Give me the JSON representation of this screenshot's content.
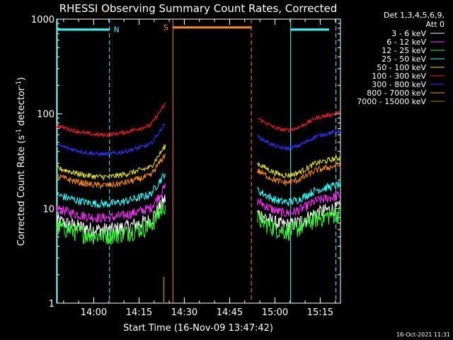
{
  "chart_data": {
    "type": "line",
    "title": "RHESSI Observing Summary Count Rates, Corrected",
    "xlabel": "Start Time (16-Nov-09 13:47:42)",
    "ylabel_parts": [
      "Corrected Count Rate (s",
      "-1",
      " detector",
      "-1",
      ")"
    ],
    "y_scale": "log",
    "ylim": [
      1,
      1000
    ],
    "x_unit": "minutes after 13:47:42",
    "xlim": [
      0,
      94
    ],
    "y_ticks": [
      {
        "value": 1,
        "label": "1"
      },
      {
        "value": 10,
        "label": "10"
      },
      {
        "value": 100,
        "label": "100"
      },
      {
        "value": 1000,
        "label": "1000"
      }
    ],
    "x_ticks": [
      {
        "value": 12.3,
        "label": "14:00"
      },
      {
        "value": 27.3,
        "label": "14:15"
      },
      {
        "value": 42.3,
        "label": "14:30"
      },
      {
        "value": 57.3,
        "label": "14:45"
      },
      {
        "value": 72.3,
        "label": "15:00"
      },
      {
        "value": 87.3,
        "label": "15:15"
      }
    ],
    "legend_header": [
      "Det 1,3,4,5,6,9,",
      "Att 0"
    ],
    "legend_position": "right",
    "series": [
      {
        "name": "3 - 6 keV",
        "color": "#ffffff",
        "pre": 7.5,
        "post": 7.5,
        "noise": 0.18
      },
      {
        "name": "6 - 12 keV",
        "color": "#ff33ff",
        "pre": 10,
        "post": 10,
        "noise": 0.12
      },
      {
        "name": "12 - 25 keV",
        "color": "#33ff33",
        "pre": 6.5,
        "post": 6.5,
        "noise": 0.22
      },
      {
        "name": "25 - 50 keV",
        "color": "#33ffff",
        "pre": 14,
        "post": 13,
        "noise": 0.1
      },
      {
        "name": "50 - 100 keV",
        "color": "#e5e533",
        "pre": 27,
        "post": 25,
        "noise": 0.07
      },
      {
        "name": "100 - 300 keV",
        "color": "#ff2020",
        "pre": 75,
        "post": 75,
        "noise": 0.05
      },
      {
        "name": "300 - 800 keV",
        "color": "#3333ff",
        "pre": 47,
        "post": 48,
        "noise": 0.05
      },
      {
        "name": "800 - 7000 keV",
        "color": "#ff8c1a",
        "pre": 22,
        "post": 21,
        "noise": 0.08
      },
      {
        "name": "7000 - 15000 keV",
        "color": "#998c00",
        "pre": null,
        "post": null,
        "noise": 0
      }
    ],
    "data_segments": [
      {
        "start": 0,
        "end": 36
      },
      {
        "start": 66.5,
        "end": 94
      }
    ],
    "night_intervals": [
      {
        "start": 0,
        "end": 17.5,
        "label": "N",
        "color": "#33ffff"
      },
      {
        "start": 77.5,
        "end": 95,
        "label": "",
        "color": "#33ffff"
      }
    ],
    "saa_intervals": [
      {
        "start": 38.5,
        "end": 64.5,
        "label": "S",
        "color": "#ff8c1a"
      }
    ],
    "extra_dashed_lines": [
      {
        "x": 17.5,
        "color": "#33ffff"
      },
      {
        "x": 92.5,
        "color": "#33ffff"
      },
      {
        "x": 64.5,
        "color": "#ff8c1a"
      }
    ],
    "extra_solid_lines": [
      {
        "x": 0,
        "color": "#33ffff"
      },
      {
        "x": 77.5,
        "color": "#33ffff"
      },
      {
        "x": 38.5,
        "color": "#ff8c1a"
      }
    ]
  },
  "footer_timestamp": "16-Oct-2021 11:31"
}
